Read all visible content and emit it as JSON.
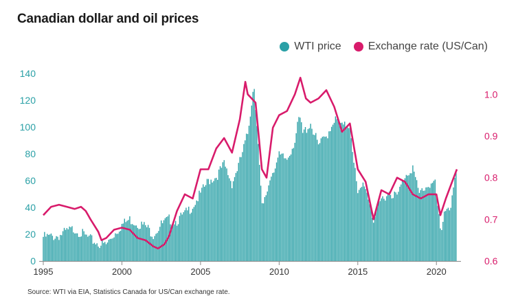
{
  "title": "Canadian dollar and oil prices",
  "legend": {
    "wti_label": "WTI price",
    "fx_label": "Exchange rate (US/Can)"
  },
  "source": "Source: WTI via EIA, Statistics Canada for US/Can exchange rate.",
  "colors": {
    "wti": "#2aa0a6",
    "fx": "#d81b6b",
    "axis": "#888888"
  },
  "chart_data": {
    "type": "bar",
    "x_range": [
      1995,
      2021.3
    ],
    "x_ticks": [
      "1995",
      "2000",
      "2005",
      "2010",
      "2015",
      "2020"
    ],
    "y_left": {
      "range": [
        0,
        140
      ],
      "ticks": [
        "0",
        "20",
        "40",
        "60",
        "80",
        "100",
        "120",
        "140"
      ]
    },
    "y_right": {
      "range": [
        0.6,
        1.05
      ],
      "ticks": [
        "0.6",
        "0.7",
        "0.8",
        "0.9",
        "1.0"
      ]
    },
    "grid": false,
    "legend_position": "top-right",
    "series": [
      {
        "name": "WTI price",
        "type": "bar",
        "axis": "left",
        "points": [
          [
            1995.0,
            18
          ],
          [
            1995.5,
            18
          ],
          [
            1996.0,
            19
          ],
          [
            1996.5,
            22
          ],
          [
            1997.0,
            24
          ],
          [
            1997.5,
            20
          ],
          [
            1998.0,
            16
          ],
          [
            1998.5,
            13
          ],
          [
            1999.0,
            12
          ],
          [
            1999.5,
            20
          ],
          [
            2000.0,
            27
          ],
          [
            2000.5,
            31
          ],
          [
            2001.0,
            28
          ],
          [
            2001.5,
            26
          ],
          [
            2002.0,
            20
          ],
          [
            2002.5,
            27
          ],
          [
            2003.0,
            31
          ],
          [
            2003.5,
            30
          ],
          [
            2004.0,
            35
          ],
          [
            2004.5,
            41
          ],
          [
            2005.0,
            50
          ],
          [
            2005.5,
            60
          ],
          [
            2006.0,
            63
          ],
          [
            2006.5,
            72
          ],
          [
            2007.0,
            58
          ],
          [
            2007.5,
            74
          ],
          [
            2008.0,
            95
          ],
          [
            2008.4,
            133
          ],
          [
            2008.6,
            100
          ],
          [
            2008.9,
            40
          ],
          [
            2009.0,
            41
          ],
          [
            2009.5,
            65
          ],
          [
            2010.0,
            78
          ],
          [
            2010.5,
            76
          ],
          [
            2011.0,
            90
          ],
          [
            2011.3,
            108
          ],
          [
            2011.5,
            95
          ],
          [
            2012.0,
            103
          ],
          [
            2012.5,
            86
          ],
          [
            2013.0,
            93
          ],
          [
            2013.5,
            106
          ],
          [
            2014.0,
            100
          ],
          [
            2014.5,
            102
          ],
          [
            2014.9,
            60
          ],
          [
            2015.0,
            48
          ],
          [
            2015.4,
            59
          ],
          [
            2015.8,
            42
          ],
          [
            2016.0,
            30
          ],
          [
            2016.5,
            46
          ],
          [
            2017.0,
            52
          ],
          [
            2017.5,
            48
          ],
          [
            2018.0,
            64
          ],
          [
            2018.5,
            70
          ],
          [
            2018.9,
            49
          ],
          [
            2019.0,
            52
          ],
          [
            2019.5,
            57
          ],
          [
            2019.9,
            59
          ],
          [
            2020.2,
            28
          ],
          [
            2020.3,
            17
          ],
          [
            2020.5,
            40
          ],
          [
            2020.9,
            40
          ],
          [
            2021.2,
            62
          ]
        ]
      },
      {
        "name": "Exchange rate (US/Can)",
        "type": "line",
        "axis": "right",
        "points": [
          [
            1995.0,
            0.71
          ],
          [
            1995.5,
            0.73
          ],
          [
            1996.0,
            0.735
          ],
          [
            1996.5,
            0.73
          ],
          [
            1997.0,
            0.725
          ],
          [
            1997.4,
            0.73
          ],
          [
            1997.7,
            0.72
          ],
          [
            1998.0,
            0.7
          ],
          [
            1998.5,
            0.67
          ],
          [
            1998.7,
            0.65
          ],
          [
            1999.0,
            0.655
          ],
          [
            1999.5,
            0.675
          ],
          [
            2000.0,
            0.68
          ],
          [
            2000.5,
            0.675
          ],
          [
            2001.0,
            0.655
          ],
          [
            2001.5,
            0.65
          ],
          [
            2002.0,
            0.635
          ],
          [
            2002.3,
            0.63
          ],
          [
            2002.7,
            0.64
          ],
          [
            2003.0,
            0.66
          ],
          [
            2003.5,
            0.72
          ],
          [
            2004.0,
            0.76
          ],
          [
            2004.5,
            0.75
          ],
          [
            2005.0,
            0.82
          ],
          [
            2005.5,
            0.82
          ],
          [
            2006.0,
            0.87
          ],
          [
            2006.5,
            0.895
          ],
          [
            2007.0,
            0.86
          ],
          [
            2007.5,
            0.94
          ],
          [
            2007.85,
            1.03
          ],
          [
            2008.0,
            1.0
          ],
          [
            2008.5,
            0.98
          ],
          [
            2008.9,
            0.82
          ],
          [
            2009.2,
            0.8
          ],
          [
            2009.6,
            0.92
          ],
          [
            2010.0,
            0.95
          ],
          [
            2010.5,
            0.96
          ],
          [
            2011.0,
            1.0
          ],
          [
            2011.35,
            1.04
          ],
          [
            2011.7,
            0.99
          ],
          [
            2012.0,
            0.98
          ],
          [
            2012.5,
            0.99
          ],
          [
            2013.0,
            1.01
          ],
          [
            2013.5,
            0.97
          ],
          [
            2014.0,
            0.91
          ],
          [
            2014.5,
            0.93
          ],
          [
            2015.0,
            0.82
          ],
          [
            2015.5,
            0.79
          ],
          [
            2016.0,
            0.7
          ],
          [
            2016.5,
            0.77
          ],
          [
            2017.0,
            0.76
          ],
          [
            2017.5,
            0.8
          ],
          [
            2018.0,
            0.79
          ],
          [
            2018.5,
            0.76
          ],
          [
            2019.0,
            0.75
          ],
          [
            2019.5,
            0.76
          ],
          [
            2020.0,
            0.76
          ],
          [
            2020.25,
            0.71
          ],
          [
            2020.6,
            0.75
          ],
          [
            2021.0,
            0.79
          ],
          [
            2021.3,
            0.82
          ]
        ]
      }
    ]
  }
}
